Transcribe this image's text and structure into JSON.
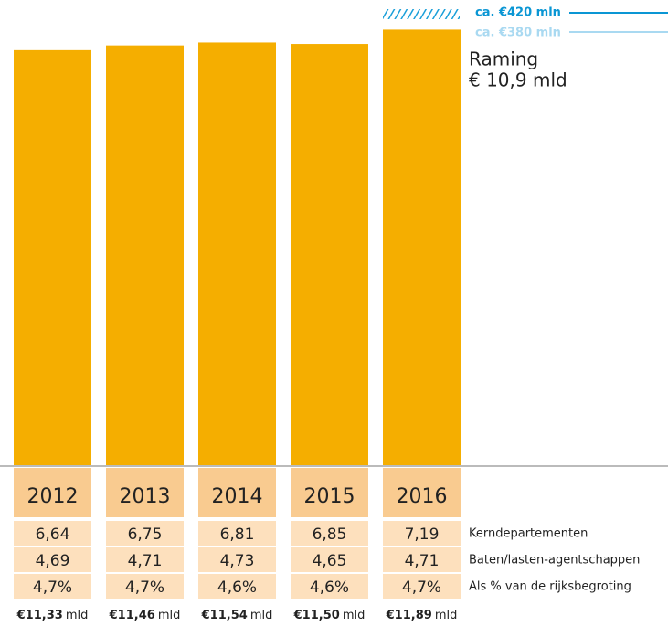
{
  "chart_data": {
    "type": "bar",
    "categories": [
      "2012",
      "2013",
      "2014",
      "2015",
      "2016"
    ],
    "values": [
      11.33,
      11.46,
      11.54,
      11.5,
      11.89
    ],
    "value_labels": [
      "€11,33",
      "€11,46",
      "€11,54",
      "€11,50",
      "€11,89"
    ],
    "value_unit": "mld",
    "color": "#f5ae00",
    "ylim": [
      0,
      12.1
    ],
    "annotations": [
      "ca. €420 mln",
      "ca. €380 mln",
      "Raming",
      "€ 10,9 mld"
    ],
    "table": [
      {
        "label": "Kerndepartementen",
        "cells": [
          "6,64",
          "6,75",
          "6,81",
          "6,85",
          "7,19"
        ]
      },
      {
        "label": "Baten/lasten-agentschappen",
        "cells": [
          "4,69",
          "4,71",
          "4,73",
          "4,65",
          "4,71"
        ]
      },
      {
        "label": "Als % van de rijksbegroting",
        "cells": [
          "4,7%",
          "4,7%",
          "4,6%",
          "4,6%",
          "4,7%"
        ]
      }
    ]
  }
}
